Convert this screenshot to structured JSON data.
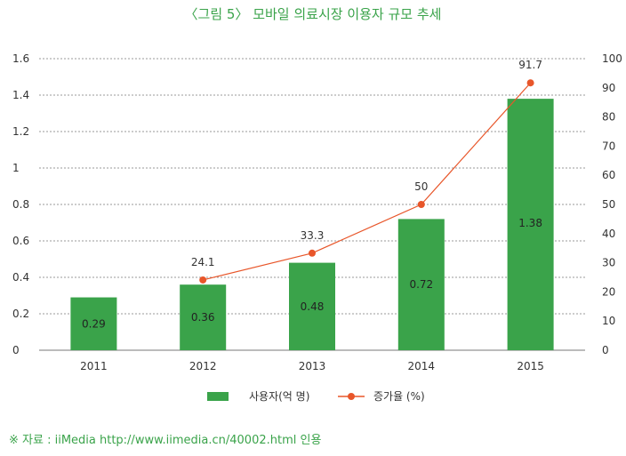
{
  "chart_data": {
    "type": "bar+line",
    "title": "〈그림 5〉 모바일 의료시장 이용자 규모 추세",
    "categories": [
      "2011",
      "2012",
      "2013",
      "2014",
      "2015"
    ],
    "series": [
      {
        "name": "사용자(억 명)",
        "type": "bar",
        "axis": "left",
        "values": [
          0.29,
          0.36,
          0.48,
          0.72,
          1.38
        ],
        "labels": [
          "0.29",
          "0.36",
          "0.48",
          "0.72",
          "1.38"
        ]
      },
      {
        "name": "증가율 (%)",
        "type": "line",
        "axis": "right",
        "values": [
          null,
          24.1,
          33.3,
          50,
          91.7
        ],
        "labels": [
          "",
          "24.1",
          "33.3",
          "50",
          "91.7"
        ]
      }
    ],
    "y_left": {
      "min": 0,
      "max": 1.6,
      "ticks": [
        "0",
        "0.2",
        "0.4",
        "0.6",
        "0.8",
        "1",
        "1.2",
        "1.4",
        "1.6"
      ]
    },
    "y_right": {
      "min": 0,
      "max": 100,
      "ticks": [
        "0",
        "10",
        "20",
        "30",
        "40",
        "50",
        "60",
        "70",
        "80",
        "90",
        "100"
      ]
    },
    "grid": true,
    "legend_position": "bottom"
  },
  "colors": {
    "bar": "#3aa34a",
    "line": "#e8562a",
    "title": "#3aa34a",
    "grid": "#9a9a9a"
  },
  "source_text": "※ 자료 : iiMedia http://www.iimedia.cn/40002.html 인용"
}
